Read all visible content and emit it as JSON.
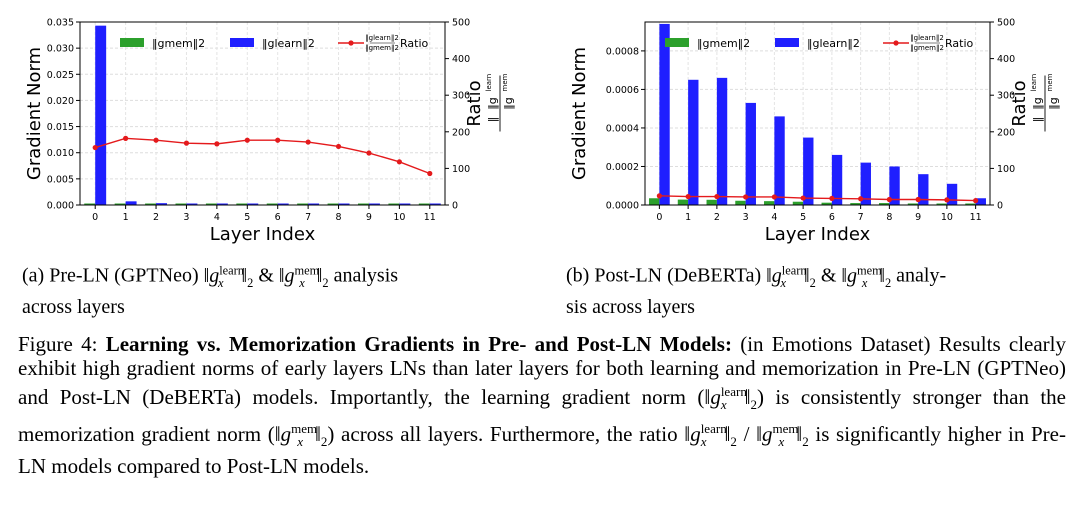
{
  "chart_data": [
    {
      "id": "a",
      "type": "bar",
      "variant": "Pre-LN (GPTNeo)",
      "xlabel": "Layer Index",
      "ylabel": "Gradient Norm",
      "y2label": "Ratio",
      "ylim": [
        0,
        0.035
      ],
      "y2lim": [
        0,
        500
      ],
      "yticks": [
        "0.000",
        "0.005",
        "0.010",
        "0.015",
        "0.020",
        "0.025",
        "0.030",
        "0.035"
      ],
      "y2ticks": [
        "0",
        "100",
        "200",
        "300",
        "400",
        "500"
      ],
      "categories": [
        "0",
        "1",
        "2",
        "3",
        "4",
        "5",
        "6",
        "7",
        "8",
        "9",
        "10",
        "11"
      ],
      "series": [
        {
          "name": "||g^mem||2",
          "kind": "bar",
          "color": "#2ca02c",
          "values": [
            8e-05,
            8e-05,
            3e-05,
            2e-05,
            2e-05,
            2e-05,
            2e-05,
            1e-05,
            1e-05,
            1e-05,
            1e-05,
            1e-05
          ]
        },
        {
          "name": "||g^learn||2",
          "kind": "bar",
          "color": "#1f1fff",
          "values": [
            0.0343,
            0.0007,
            0.00035,
            0.00025,
            0.0002,
            0.00018,
            0.00015,
            0.00012,
            0.0001,
            8e-05,
            7e-05,
            6e-05
          ]
        },
        {
          "name": "Ratio",
          "kind": "line",
          "axis": "right",
          "color": "#e41a1c",
          "values": [
            157,
            182,
            177,
            169,
            167,
            177,
            177,
            172,
            160,
            142,
            118,
            86
          ]
        }
      ]
    },
    {
      "id": "b",
      "type": "bar",
      "variant": "Post-LN (DeBERTa)",
      "xlabel": "Layer Index",
      "ylabel": "Gradient Norm",
      "y2label": "Ratio",
      "ylim": [
        0,
        0.00095
      ],
      "y2lim": [
        0,
        500
      ],
      "yticks": [
        "0.0000",
        "0.0002",
        "0.0004",
        "0.0006",
        "0.0008"
      ],
      "y2ticks": [
        "0",
        "100",
        "200",
        "300",
        "400",
        "500"
      ],
      "categories": [
        "0",
        "1",
        "2",
        "3",
        "4",
        "5",
        "6",
        "7",
        "8",
        "9",
        "10",
        "11"
      ],
      "series": [
        {
          "name": "||g^mem||2",
          "kind": "bar",
          "color": "#2ca02c",
          "values": [
            3.5e-05,
            2.8e-05,
            2.7e-05,
            2.2e-05,
            2e-05,
            1.7e-05,
            1.2e-05,
            1e-05,
            1e-05,
            8e-06,
            7e-06,
            5e-06
          ]
        },
        {
          "name": "||g^learn||2",
          "kind": "bar",
          "color": "#1f1fff",
          "values": [
            0.00094,
            0.00065,
            0.00066,
            0.00053,
            0.00046,
            0.00035,
            0.00026,
            0.00022,
            0.0002,
            0.00016,
            0.00011,
            3.5e-05
          ]
        },
        {
          "name": "Ratio",
          "kind": "line",
          "axis": "right",
          "color": "#e41a1c",
          "values": [
            25,
            23,
            23,
            22,
            22,
            19,
            18,
            17,
            15,
            15,
            14,
            12
          ]
        }
      ]
    }
  ],
  "legend": {
    "mem_text": "‖g",
    "mem_sup": "mem",
    "mem_tail": "‖",
    "mem_sub": "2",
    "learn_text": "‖g",
    "learn_sup": "learn",
    "learn_tail": "‖",
    "learn_sub": "2",
    "ratio_label": "Ratio"
  },
  "captions": {
    "a_prefix": "(a) Pre-LN (GPTNeo)",
    "a_suffix": "analysis",
    "a_line2": "across layers",
    "b_prefix": "(b) Post-LN (DeBERTa)",
    "b_suffix": "analy-",
    "b_line2": "sis across layers",
    "amp": "&",
    "g": "g",
    "x": "x",
    "learn": "learn",
    "mem": "mem",
    "two": "2",
    "figure_label": "Figure 4:",
    "figure_title": "Learning vs. Memorization Gradients in Pre- and Post-LN Models:",
    "fig_t1": "(in Emotions Dataset) Results clearly exhibit high gradient norms of early layers LNs than later layers for both learning and memorization in Pre-LN (GPTNeo) and Post-LN (DeBERTa) models. Importantly, the learning gradient norm (",
    "fig_t2": ") is consistently stronger than the memorization gradient norm (",
    "fig_t3": ") across all layers. Furthermore, the ratio",
    "fig_t4": "is significantly higher in Pre-LN models compared to Post-LN models."
  }
}
